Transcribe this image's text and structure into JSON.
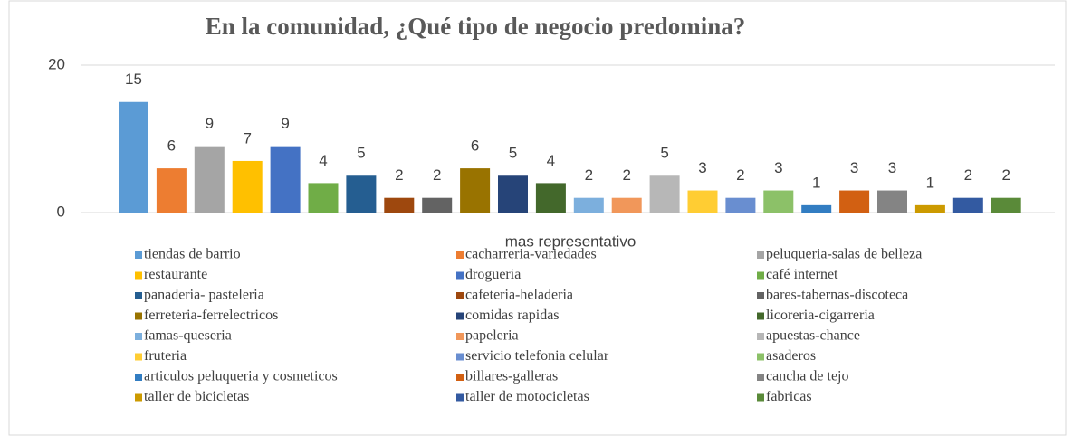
{
  "chart_data": {
    "type": "bar",
    "title": "En la comunidad, ¿Qué tipo de negocio predomina?",
    "categories": [
      "mas representativo"
    ],
    "ylim": [
      0,
      20
    ],
    "yticks": [
      0,
      20
    ],
    "grid": true,
    "legend": "bottom",
    "series": [
      {
        "name": "tiendas de barrio",
        "color": "#5b9bd5",
        "values": [
          15
        ]
      },
      {
        "name": "cacharreria-variedades",
        "color": "#ed7d31",
        "values": [
          6
        ]
      },
      {
        "name": "peluqueria-salas de belleza",
        "color": "#a5a5a5",
        "values": [
          9
        ]
      },
      {
        "name": "restaurante",
        "color": "#ffc000",
        "values": [
          7
        ]
      },
      {
        "name": "drogueria",
        "color": "#4472c4",
        "values": [
          9
        ]
      },
      {
        "name": "café internet",
        "color": "#70ad47",
        "values": [
          4
        ]
      },
      {
        "name": "panaderia- pasteleria",
        "color": "#255e91",
        "values": [
          5
        ]
      },
      {
        "name": "cafeteria-heladeria",
        "color": "#9e480e",
        "values": [
          2
        ]
      },
      {
        "name": "bares-tabernas-discoteca",
        "color": "#636363",
        "values": [
          2
        ]
      },
      {
        "name": "ferreteria-ferrelectricos",
        "color": "#997300",
        "values": [
          6
        ]
      },
      {
        "name": "comidas rapidas",
        "color": "#264478",
        "values": [
          5
        ]
      },
      {
        "name": "licoreria-cigarreria",
        "color": "#43682b",
        "values": [
          4
        ]
      },
      {
        "name": "famas-queseria",
        "color": "#7cafdd",
        "values": [
          2
        ]
      },
      {
        "name": "papeleria",
        "color": "#f1975a",
        "values": [
          2
        ]
      },
      {
        "name": "apuestas-chance",
        "color": "#b7b7b7",
        "values": [
          5
        ]
      },
      {
        "name": "fruteria",
        "color": "#ffcd33",
        "values": [
          3
        ]
      },
      {
        "name": "servicio telefonia celular",
        "color": "#698ed0",
        "values": [
          2
        ]
      },
      {
        "name": "asaderos",
        "color": "#8cc168",
        "values": [
          3
        ]
      },
      {
        "name": "articulos peluqueria y cosmeticos",
        "color": "#327dc2",
        "values": [
          1
        ]
      },
      {
        "name": "billares-galleras",
        "color": "#d26012",
        "values": [
          3
        ]
      },
      {
        "name": "cancha de tejo",
        "color": "#848484",
        "values": [
          3
        ]
      },
      {
        "name": "taller de bicicletas",
        "color": "#cc9a00",
        "values": [
          1
        ]
      },
      {
        "name": "taller de motocicletas",
        "color": "#335aa1",
        "values": [
          2
        ]
      },
      {
        "name": "fabricas",
        "color": "#5a8a39",
        "values": [
          2
        ]
      }
    ]
  }
}
